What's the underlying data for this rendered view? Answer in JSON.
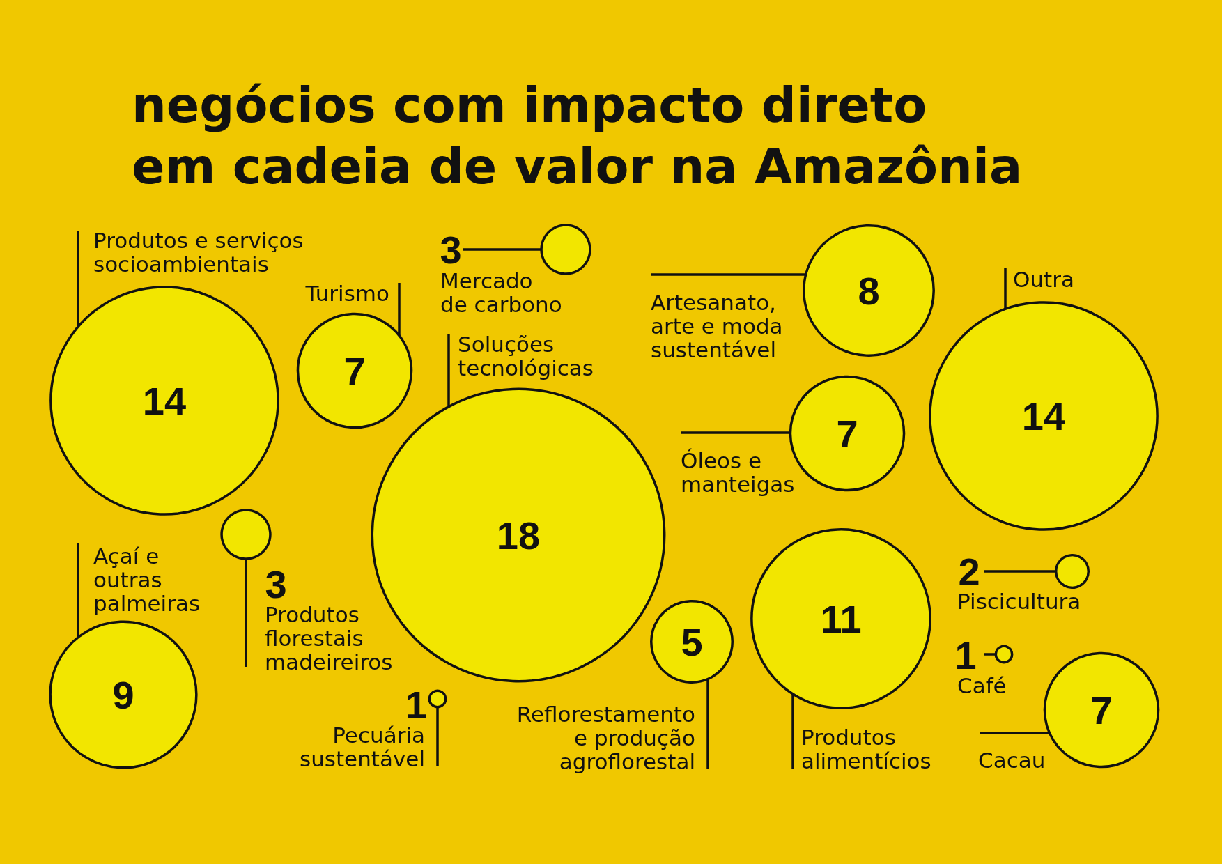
{
  "chart_data": {
    "type": "other",
    "title": "negócios com impacto direto\nem cadeia de valor na Amazônia",
    "categories": [
      "Produtos e serviços\nsocioambientais",
      "Turismo",
      "Mercado\nde carbono",
      "Artesanato,\narte e moda\nsustentável",
      "Outra",
      "Soluções\ntecnológicas",
      "Óleos e\nmanteigas",
      "Açaí e\noutras\npalmeiras",
      "Produtos\nflorestais\nmadeireiros",
      "Pecuária\nsustentável",
      "Reflorestamento\ne produção\nagroflorestal",
      "Produtos\nalimentícios",
      "Piscicultura",
      "Café",
      "Cacau"
    ],
    "values": [
      14,
      7,
      3,
      8,
      14,
      18,
      7,
      9,
      3,
      1,
      5,
      11,
      2,
      1,
      7
    ],
    "color": "#f2e600",
    "data_labels": true
  }
}
